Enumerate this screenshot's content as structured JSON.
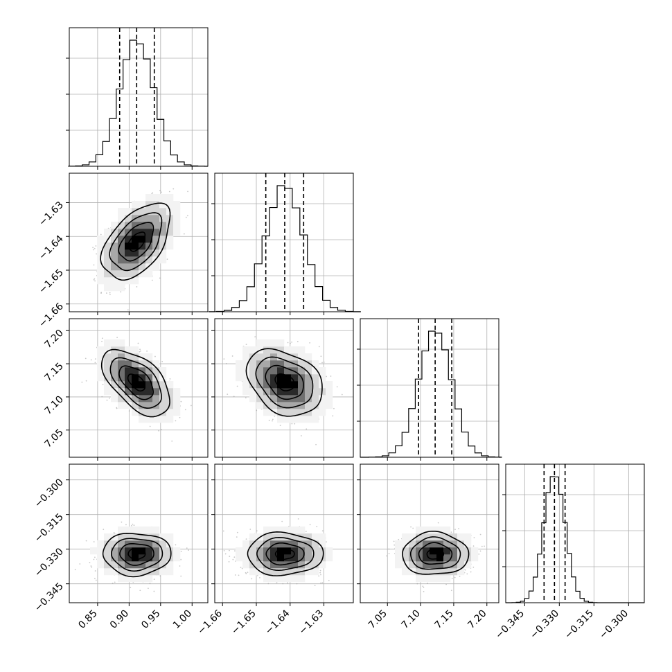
{
  "colors": {
    "background": "#ffffff",
    "axes": "#000000",
    "grid": "#b0b0b0",
    "histogram": "#000000",
    "contour": "#000000",
    "scatter": "#9a9a9a",
    "density_levels": [
      "#f3f3f3",
      "#d6d6d6",
      "#a8a8a8",
      "#707070",
      "#2a2a2a",
      "#000000"
    ]
  },
  "chart_data": {
    "type": "corner",
    "grid": true,
    "parameters": [
      {
        "id": "p0",
        "range": [
          0.805,
          1.025
        ],
        "ticks": [
          0.85,
          0.9,
          0.95,
          1.0
        ],
        "tick_labels": [
          "0.85",
          "0.90",
          "0.95",
          "1.00"
        ],
        "quantiles": {
          "q16": 0.885,
          "q50": 0.912,
          "q84": 0.94
        },
        "mean": 0.912,
        "std": 0.027
      },
      {
        "id": "p1",
        "range": [
          -1.6623,
          -1.6213
        ],
        "ticks": [
          -1.66,
          -1.65,
          -1.64,
          -1.63
        ],
        "tick_labels": [
          "−1.66",
          "−1.65",
          "−1.64",
          "−1.63"
        ],
        "quantiles": {
          "q16": -1.6472,
          "q50": -1.6416,
          "q84": -1.636
        },
        "mean": -1.6416,
        "std": 0.0056
      },
      {
        "id": "p2",
        "range": [
          7.009,
          7.218
        ],
        "ticks": [
          7.05,
          7.1,
          7.15,
          7.2
        ],
        "tick_labels": [
          "7.05",
          "7.10",
          "7.15",
          "7.20"
        ],
        "quantiles": {
          "q16": 7.097,
          "q50": 7.122,
          "q84": 7.147
        },
        "mean": 7.122,
        "std": 0.025
      },
      {
        "id": "p3",
        "range": [
          -0.3532,
          -0.2932
        ],
        "ticks": [
          -0.345,
          -0.33,
          -0.315,
          -0.3
        ],
        "tick_labels": [
          "−0.345",
          "−0.330",
          "−0.315",
          "−0.300"
        ],
        "quantiles": {
          "q16": -0.3366,
          "q50": -0.3321,
          "q84": -0.3275
        },
        "mean": -0.3321,
        "std": 0.0046
      }
    ],
    "correlations": [
      {
        "x": 0,
        "y": 1,
        "rho": 0.5
      },
      {
        "x": 0,
        "y": 2,
        "rho": -0.55
      },
      {
        "x": 1,
        "y": 2,
        "rho": -0.3
      },
      {
        "x": 0,
        "y": 3,
        "rho": 0.0
      },
      {
        "x": 1,
        "y": 3,
        "rho": 0.0
      },
      {
        "x": 2,
        "y": 3,
        "rho": 0.0
      }
    ],
    "histogram_bins": 20,
    "quantile_labels": [
      "16%",
      "50%",
      "84%"
    ]
  }
}
